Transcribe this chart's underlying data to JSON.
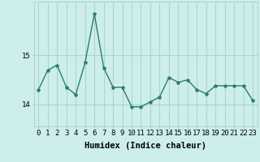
{
  "x": [
    0,
    1,
    2,
    3,
    4,
    5,
    6,
    7,
    8,
    9,
    10,
    11,
    12,
    13,
    14,
    15,
    16,
    17,
    18,
    19,
    20,
    21,
    22,
    23
  ],
  "y": [
    14.3,
    14.7,
    14.8,
    14.35,
    14.2,
    14.85,
    15.85,
    14.75,
    14.35,
    14.35,
    13.95,
    13.95,
    14.05,
    14.15,
    14.55,
    14.45,
    14.5,
    14.3,
    14.22,
    14.38,
    14.38,
    14.38,
    14.38,
    14.08
  ],
  "line_color": "#2e7d6e",
  "marker": "*",
  "marker_size": 3,
  "bg_color": "#cdeeed",
  "grid_color": "#aad8cc",
  "xlabel": "Humidex (Indice chaleur)",
  "yticks": [
    14,
    15
  ],
  "ylim": [
    13.55,
    16.1
  ],
  "xlim": [
    -0.5,
    23.5
  ],
  "xlabel_fontsize": 7.5,
  "tick_fontsize": 6.5,
  "line_width": 1.0
}
